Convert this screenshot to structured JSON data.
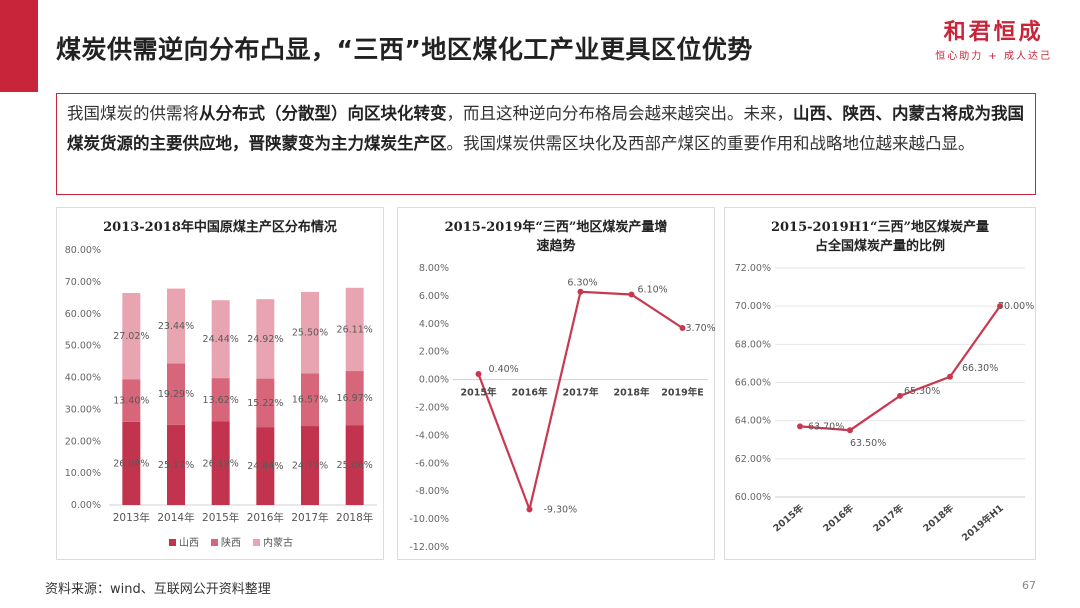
{
  "header": {
    "title": "煤炭供需逆向分布凸显，“三西”地区煤化工产业更具区位优势",
    "brand_name": "和君恒成",
    "brand_slogan": "恒心助力 + 成人达己"
  },
  "summary": {
    "p1": "我国煤炭的供需将",
    "b1": "从分布式（分散型）向区块化转变",
    "p2": "，而且这种逆向分布格局会越来越突出。未来，",
    "b2": "山西、陕西、内蒙古将成为我国煤炭货源的主要供应地，晋陕蒙变为主力煤炭生产区",
    "p3": "。我国煤炭供需区块化及西部产煤区的重要作用和战略地位越来越凸显。"
  },
  "colors": {
    "accent": "#c8243a",
    "shanxi": "#c2344d",
    "shaanxi": "#d7667b",
    "neimenggu": "#e9a4b1",
    "line": "#c8384f"
  },
  "chart_data": [
    {
      "type": "bar",
      "stacked": true,
      "title": "2013-2018年中国原煤主产区分布情况",
      "categories": [
        "2013年",
        "2014年",
        "2015年",
        "2016年",
        "2017年",
        "2018年"
      ],
      "series": [
        {
          "name": "山西",
          "values": [
            26.08,
            25.17,
            26.19,
            24.44,
            24.77,
            25.06
          ],
          "labels": [
            "26.08%",
            "25.17%",
            "26.19%",
            "24.44%",
            "24.77%",
            "25.06%"
          ]
        },
        {
          "name": "陕西",
          "values": [
            13.4,
            19.29,
            13.62,
            15.22,
            16.57,
            16.97
          ],
          "labels": [
            "13.40%",
            "19.29%",
            "13.62%",
            "15.22%",
            "16.57%",
            "16.97%"
          ]
        },
        {
          "name": "内蒙古",
          "values": [
            27.02,
            23.44,
            24.44,
            24.92,
            25.5,
            26.11
          ],
          "labels": [
            "27.02%",
            "23.44%",
            "24.44%",
            "24.92%",
            "25.50%",
            "26.11%"
          ]
        }
      ],
      "ylim": [
        0,
        80
      ],
      "yticks": [
        "0.00%",
        "10.00%",
        "20.00%",
        "30.00%",
        "40.00%",
        "50.00%",
        "60.00%",
        "70.00%",
        "80.00%"
      ],
      "legend": "bottom"
    },
    {
      "type": "line",
      "title": "2015-2019年“三西”地区煤炭产量增速趋势",
      "categories": [
        "2015年",
        "2016年",
        "2017年",
        "2018年",
        "2019年E"
      ],
      "values": [
        0.4,
        -9.3,
        6.3,
        6.1,
        3.7
      ],
      "labels": [
        "0.40%",
        "-9.30%",
        "6.30%",
        "6.10%",
        "3.70%"
      ],
      "ylim": [
        -12,
        8
      ],
      "yticks": [
        "-12.00%",
        "-10.00%",
        "-8.00%",
        "-6.00%",
        "-4.00%",
        "-2.00%",
        "0.00%",
        "2.00%",
        "4.00%",
        "6.00%",
        "8.00%"
      ]
    },
    {
      "type": "line",
      "title": "2015-2019H1“三西”地区煤炭产量占全国煤炭产量的比例",
      "categories": [
        "2015年",
        "2016年",
        "2017年",
        "2018年",
        "2019年H1"
      ],
      "values": [
        63.7,
        63.5,
        65.3,
        66.3,
        70.0
      ],
      "labels": [
        "63.70%",
        "63.50%",
        "65.30%",
        "66.30%",
        "70.00%"
      ],
      "ylim": [
        60,
        72
      ],
      "yticks": [
        "60.00%",
        "62.00%",
        "64.00%",
        "66.00%",
        "68.00%",
        "70.00%",
        "72.00%"
      ]
    }
  ],
  "chart_titles": {
    "c1": "2013-2018年中国原煤主产区分布情况",
    "c2_line1": "2015-2019年“三西”地区煤炭产量增",
    "c2_line2": "速趋势",
    "c3_line1": "2015-2019H1“三西”地区煤炭产量",
    "c3_line2": "占全国煤炭产量的比例"
  },
  "footer": {
    "source": "资料来源：wind、互联网公开资料整理",
    "page": "67"
  }
}
